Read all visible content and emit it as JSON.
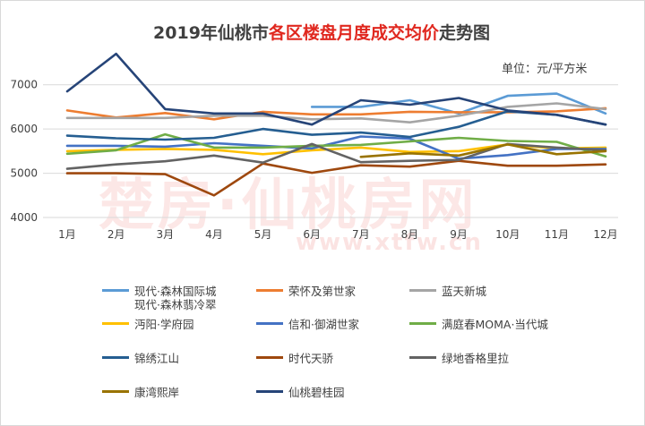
{
  "title": {
    "prefix": "2019年仙桃市",
    "highlight": "各区楼盘月度成交均价",
    "suffix": "走势图"
  },
  "unit_label": "单位：元/平方米",
  "watermark": {
    "main": "楚房·仙桃房网",
    "url": "www.xtfw.cn"
  },
  "chart_data": {
    "type": "line",
    "title": "2019年仙桃市各区楼盘月度成交均价走势图",
    "ylabel": "单位：元/平方米",
    "categories": [
      "1月",
      "2月",
      "3月",
      "4月",
      "5月",
      "6月",
      "7月",
      "8月",
      "9月",
      "10月",
      "11月",
      "12月"
    ],
    "ylim": [
      4000,
      7500
    ],
    "yticks": [
      4000,
      5000,
      6000,
      7000
    ],
    "grid": true,
    "legend_position": "bottom",
    "series": [
      {
        "name": "现代·森林国际城",
        "color": "#5b9bd5",
        "values": [
          null,
          null,
          null,
          null,
          null,
          6500,
          6500,
          6650,
          6350,
          6750,
          6800,
          6350
        ]
      },
      {
        "name": "荣怀及第世家",
        "color": "#ed7d31",
        "values": [
          6420,
          6260,
          6360,
          6220,
          6390,
          6330,
          6330,
          6390,
          6380,
          6380,
          6400,
          6470
        ]
      },
      {
        "name": "蓝天新城",
        "color": "#a5a5a5",
        "values": [
          6250,
          6250,
          6250,
          6300,
          6300,
          6220,
          6240,
          6150,
          6300,
          6500,
          6580,
          6450
        ]
      },
      {
        "name": "现代·森林翡冷翠",
        "color": "#ffc000",
        "values": [
          null,
          null,
          null,
          null,
          null,
          null,
          null,
          null,
          null,
          null,
          null,
          null
        ]
      },
      {
        "name": "沔阳·学府园",
        "color": "#ffc000",
        "values": [
          5500,
          5530,
          5550,
          5530,
          5430,
          5520,
          5580,
          5480,
          5500,
          5650,
          5560,
          5580
        ]
      },
      {
        "name": "信和·御湖世家",
        "color": "#4472c4",
        "values": [
          5620,
          5620,
          5600,
          5680,
          5620,
          5560,
          5830,
          5780,
          5330,
          5410,
          5550,
          5550
        ]
      },
      {
        "name": "满庭春MOMA·当代城",
        "color": "#70ad47",
        "values": [
          5440,
          5520,
          5880,
          5580,
          5580,
          5620,
          5640,
          5720,
          5800,
          5730,
          5710,
          5380
        ]
      },
      {
        "name": "锦绣江山",
        "color": "#255e91",
        "values": [
          5850,
          5790,
          5760,
          5800,
          6000,
          5870,
          5920,
          5820,
          6050,
          6400,
          6320,
          6100
        ]
      },
      {
        "name": "时代天骄",
        "color": "#9e480e",
        "values": [
          5000,
          5000,
          4980,
          4500,
          5220,
          5010,
          5180,
          5150,
          5280,
          5170,
          5170,
          5200
        ]
      },
      {
        "name": "绿地香格里拉",
        "color": "#636363",
        "values": [
          5100,
          5200,
          5270,
          5400,
          5240,
          5660,
          5250,
          5280,
          5300,
          5660,
          5580,
          5520
        ]
      },
      {
        "name": "康湾熙岸",
        "color": "#997300",
        "values": [
          null,
          null,
          null,
          null,
          null,
          null,
          5370,
          5450,
          5400,
          5650,
          5430,
          5500
        ]
      },
      {
        "name": "仙桃碧桂园",
        "color": "#264478",
        "values": [
          6850,
          7700,
          6450,
          6350,
          6350,
          6100,
          6650,
          6550,
          6700,
          6420,
          6320,
          6100
        ]
      }
    ]
  }
}
